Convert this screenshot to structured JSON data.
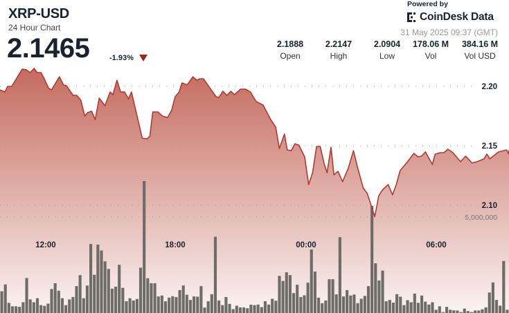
{
  "header": {
    "symbol": "XRP-USD",
    "subtitle": "24 Hour Chart",
    "price": "2.1465",
    "change": "-1.93%",
    "change_direction": "down",
    "stats": [
      {
        "value": "2.1888",
        "label": "Open"
      },
      {
        "value": "2.2147",
        "label": "High"
      },
      {
        "value": "2.0904",
        "label": "Low"
      },
      {
        "value": "178.06 M",
        "label": "Vol"
      },
      {
        "value": "384.16 M",
        "label": "Vol USD"
      }
    ]
  },
  "branding": {
    "powered_by": "Powered by",
    "logo_text": "CoinDesk Data",
    "timestamp": "31 May 2025 09:37 (GMT)"
  },
  "colors": {
    "line": "#b03a2e",
    "fill_top": "#c4695d",
    "volume_bar": "#6d6d66",
    "down": "#a32418"
  },
  "chart_data": {
    "type": "area",
    "price_axis": {
      "ticks": [
        "2.20",
        "2.15",
        "2.10"
      ],
      "tick_values": [
        2.2,
        2.15,
        2.1
      ],
      "position": "right"
    },
    "volume_axis": {
      "ticks": [
        "5,000,000"
      ],
      "tick_values": [
        5000000
      ]
    },
    "x_ticks": [
      "12:00",
      "18:00",
      "00:00",
      "06:00"
    ],
    "grid": "dotted horizontal",
    "price_series": [
      [
        "09:54",
        2.1971
      ],
      [
        "10:07",
        2.1953
      ],
      [
        "10:15",
        2.2
      ],
      [
        "10:26",
        2.2
      ],
      [
        "10:55",
        2.2145
      ],
      [
        "11:06",
        2.214
      ],
      [
        "11:17",
        2.2116
      ],
      [
        "11:28",
        2.2151
      ],
      [
        "11:36",
        2.2116
      ],
      [
        "11:47",
        2.2116
      ],
      [
        "11:55",
        2.207
      ],
      [
        "12:08",
        2.1983
      ],
      [
        "12:16",
        2.1971
      ],
      [
        "12:38",
        2.2081
      ],
      [
        "12:49",
        2.2012
      ],
      [
        "12:57",
        2.2006
      ],
      [
        "13:16",
        2.1924
      ],
      [
        "13:26",
        2.1924
      ],
      [
        "13:37",
        2.1884
      ],
      [
        "13:48",
        2.175
      ],
      [
        "13:56",
        2.1779
      ],
      [
        "14:07",
        2.1791
      ],
      [
        "14:17",
        2.1721
      ],
      [
        "14:28",
        2.1901
      ],
      [
        "14:44",
        2.1837
      ],
      [
        "14:58",
        2.1953
      ],
      [
        "15:06",
        2.193
      ],
      [
        "15:17",
        2.2052
      ],
      [
        "15:27",
        2.1953
      ],
      [
        "15:38",
        2.1953
      ],
      [
        "15:49",
        2.1895
      ],
      [
        "15:57",
        2.1953
      ],
      [
        "16:27",
        2.1564
      ],
      [
        "16:40",
        2.1558
      ],
      [
        "16:48",
        2.1581
      ],
      [
        "16:56",
        2.1785
      ],
      [
        "17:10",
        2.1785
      ],
      [
        "17:23",
        2.175
      ],
      [
        "17:37",
        2.1738
      ],
      [
        "17:48",
        2.1797
      ],
      [
        "17:58",
        2.1913
      ],
      [
        "18:09",
        2.1953
      ],
      [
        "18:17",
        2.2029
      ],
      [
        "18:31",
        2.2012
      ],
      [
        "18:47",
        2.2081
      ],
      [
        "18:58",
        2.2052
      ],
      [
        "19:06",
        2.2064
      ],
      [
        "19:16",
        2.2064
      ],
      [
        "19:51",
        2.1913
      ],
      [
        "19:59",
        2.1907
      ],
      [
        "20:10",
        2.1959
      ],
      [
        "20:21",
        2.1924
      ],
      [
        "20:32",
        2.1959
      ],
      [
        "20:42",
        2.193
      ],
      [
        "20:59",
        2.1977
      ],
      [
        "21:12",
        2.1977
      ],
      [
        "21:26",
        2.1953
      ],
      [
        "21:42",
        2.1872
      ],
      [
        "22:01",
        2.1843
      ],
      [
        "22:22",
        2.1721
      ],
      [
        "22:36",
        2.1657
      ],
      [
        "22:46",
        2.1477
      ],
      [
        "23:00",
        2.1599
      ],
      [
        "23:08",
        2.1465
      ],
      [
        "23:19",
        2.1459
      ],
      [
        "23:29",
        2.1517
      ],
      [
        "23:40",
        2.1506
      ],
      [
        "23:56",
        2.1407
      ],
      [
        "00:07",
        2.1174
      ],
      [
        "00:18",
        2.1273
      ],
      [
        "00:29",
        2.1494
      ],
      [
        "00:39",
        2.1494
      ],
      [
        "00:50",
        2.1349
      ],
      [
        "00:58",
        2.1273
      ],
      [
        "01:09",
        2.1488
      ],
      [
        "01:17",
        2.1256
      ],
      [
        "01:28",
        2.1285
      ],
      [
        "01:41",
        2.1198
      ],
      [
        "01:57",
        2.1314
      ],
      [
        "02:11",
        2.1459
      ],
      [
        "02:22",
        2.132
      ],
      [
        "02:38",
        2.1145
      ],
      [
        "02:49",
        2.1099
      ],
      [
        "03:10",
        2.0904
      ],
      [
        "03:21",
        2.1081
      ],
      [
        "03:31",
        2.1128
      ],
      [
        "03:47",
        2.1174
      ],
      [
        "03:59",
        2.1087
      ],
      [
        "04:09",
        2.1169
      ],
      [
        "04:20",
        2.1291
      ],
      [
        "04:39",
        2.136
      ],
      [
        "04:58",
        2.1436
      ],
      [
        "05:09",
        2.1407
      ],
      [
        "05:19",
        2.1413
      ],
      [
        "05:30",
        2.1448
      ],
      [
        "05:49",
        2.1343
      ],
      [
        "05:57",
        2.143
      ],
      [
        "06:11",
        2.1442
      ],
      [
        "06:21",
        2.1442
      ],
      [
        "06:32",
        2.1471
      ],
      [
        "06:46",
        2.1442
      ],
      [
        "07:07",
        2.1366
      ],
      [
        "07:21",
        2.1413
      ],
      [
        "07:39",
        2.1355
      ],
      [
        "07:53",
        2.1366
      ],
      [
        "08:12",
        2.139
      ],
      [
        "08:20",
        2.143
      ],
      [
        "08:28",
        2.139
      ],
      [
        "08:52",
        2.1448
      ],
      [
        "09:14",
        2.1465
      ],
      [
        "09:22",
        2.143
      ],
      [
        "09:37",
        2.1465
      ]
    ],
    "volume_millions": [
      1.13,
      1.49,
      0.53,
      0.35,
      0.35,
      0.32,
      0.56,
      1.82,
      0.71,
      0.56,
      0.77,
      0.41,
      0.37,
      0.49,
      1.25,
      1.55,
      1.16,
      0.77,
      0.41,
      0.71,
      0.83,
      1.4,
      1.97,
      0.77,
      1.43,
      3.59,
      1.99,
      3.56,
      3.25,
      2.69,
      2.29,
      1.27,
      1.37,
      2.51,
      1.31,
      0.61,
      0.77,
      0.65,
      0.73,
      2.36,
      6.87,
      1.81,
      1.55,
      1.55,
      0.86,
      0.91,
      0.61,
      0.8,
      0.87,
      0.83,
      1.19,
      1.43,
      0.95,
      0.68,
      0.86,
      0.85,
      1.4,
      0.28,
      0.61,
      0.98,
      3.97,
      0.65,
      0.41,
      0.83,
      0.47,
      0.2,
      0.38,
      0.29,
      0.29,
      0.25,
      0.43,
      0.41,
      0.44,
      0.31,
      0.61,
      0.44,
      0.74,
      0.64,
      1.93,
      1.67,
      2.12,
      1.97,
      1.04,
      1.47,
      0.83,
      0.92,
      1.58,
      3.31,
      2.16,
      0.8,
      0.51,
      0.65,
      1.76,
      1.76,
      0.97,
      3.95,
      0.86,
      1.19,
      0.91,
      0.96,
      0.51,
      0.74,
      0.89,
      1.4,
      5.58,
      2.59,
      1.69,
      2.21,
      0.61,
      0.68,
      0.54,
      0.98,
      0.85,
      0.41,
      0.67,
      0.56,
      1.01,
      0.53,
      0.91,
      0.59,
      0.44,
      0.56,
      0.17,
      0.35,
      0.05,
      0.32,
      0.17,
      0.14,
      0.13,
      0.05,
      0.23,
      0.1,
      0.05,
      0.13,
      0.13,
      0.19,
      0.29,
      1.07,
      1.59,
      0.68,
      0.38,
      2.71,
      0.17
    ]
  }
}
